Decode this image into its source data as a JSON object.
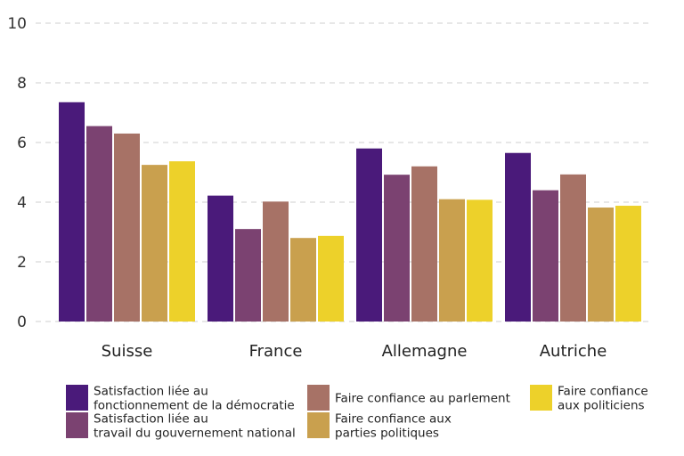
{
  "chart_data": {
    "type": "bar",
    "title": "",
    "xlabel": "",
    "ylabel": "",
    "ylim": [
      0,
      10
    ],
    "yticks": [
      0,
      2,
      4,
      6,
      8,
      10
    ],
    "grid": true,
    "legend_position": "bottom",
    "categories": [
      "Suisse",
      "France",
      "Allemagne",
      "Autriche"
    ],
    "series": [
      {
        "name": "Satisfaction liée au fonctionnement de la démocratie",
        "legend_lines": [
          "Satisfaction liée au",
          "fonctionnement de la démocratie"
        ],
        "color": "#4a1a7a",
        "values": [
          7.35,
          4.22,
          5.8,
          5.65
        ]
      },
      {
        "name": "Satisfaction liée au travail du gouvernement national",
        "legend_lines": [
          "Satisfaction liée au",
          "travail du gouvernement national"
        ],
        "color": "#7b4271",
        "values": [
          6.55,
          3.1,
          4.92,
          4.4
        ]
      },
      {
        "name": "Faire confiance au parlement",
        "legend_lines": [
          "Faire confiance au parlement"
        ],
        "color": "#a77266",
        "values": [
          6.3,
          4.02,
          5.2,
          4.93
        ]
      },
      {
        "name": "Faire confiance aux parties politiques",
        "legend_lines": [
          "Faire confiance aux",
          "parties politiques"
        ],
        "color": "#c9a04e",
        "values": [
          5.25,
          2.8,
          4.1,
          3.82
        ]
      },
      {
        "name": "Faire confiance aux politiciens",
        "legend_lines": [
          "Faire confiance",
          "aux politiciens"
        ],
        "color": "#edd12a",
        "values": [
          5.37,
          2.87,
          4.08,
          3.88
        ]
      }
    ]
  }
}
